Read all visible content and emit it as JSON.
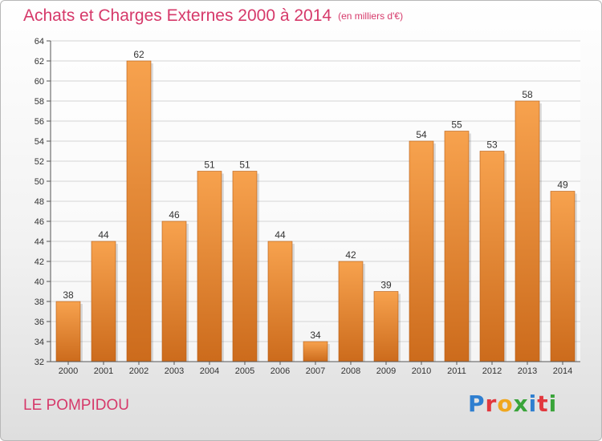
{
  "header": {
    "title": "Achats et Charges Externes 2000 à 2014",
    "unit": "(en milliers d'€)"
  },
  "footer": {
    "commune": "LE POMPIDOU",
    "brand": "Proxiti"
  },
  "colors": {
    "title": "#d6396a",
    "bar_top": "#f7a24e",
    "bar_bottom": "#cc6b1c"
  },
  "chart_data": {
    "type": "bar",
    "title": "Achats et Charges Externes 2000 à 2014",
    "xlabel": "",
    "ylabel": "",
    "categories": [
      "2000",
      "2001",
      "2002",
      "2003",
      "2004",
      "2005",
      "2006",
      "2007",
      "2008",
      "2009",
      "2010",
      "2011",
      "2012",
      "2013",
      "2014"
    ],
    "values": [
      38,
      44,
      62,
      46,
      51,
      51,
      44,
      34,
      42,
      39,
      54,
      55,
      53,
      58,
      49
    ],
    "ylim": [
      32,
      64
    ],
    "yticks": [
      32,
      34,
      36,
      38,
      40,
      42,
      44,
      46,
      48,
      50,
      52,
      54,
      56,
      58,
      60,
      62,
      64
    ],
    "grid": true,
    "legend": "none"
  }
}
